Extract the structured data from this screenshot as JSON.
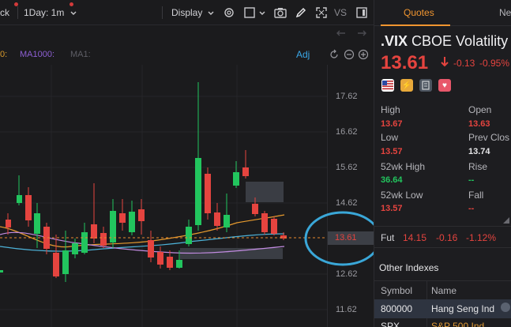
{
  "toolbar": {
    "left_cut": "ck",
    "interval": "1Day: 1m",
    "display": "Display",
    "vs": "VS"
  },
  "indicators": {
    "cut": "0:",
    "ma1000": "MA1000:",
    "ma1": "MA1:",
    "adj": "Adj"
  },
  "price_axis": [
    "17.62",
    "16.62",
    "15.62",
    "14.62",
    "12.62",
    "11.62"
  ],
  "current_price_tag": "13.61",
  "panel": {
    "tabs": [
      "Quotes",
      "Ne"
    ],
    "symbol": ".VIX",
    "name": "CBOE Volatility",
    "price": "13.61",
    "change": "-0.13",
    "change_pct": "-0.95%",
    "stats": {
      "high_label": "High",
      "high": "13.67",
      "open_label": "Open",
      "open": "13.63",
      "low_label": "Low",
      "low": "13.57",
      "prev_close_label": "Prev Clos",
      "prev_close": "13.74",
      "wk52_high_label": "52wk High",
      "wk52_high": "36.64",
      "rise_label": "Rise",
      "rise": "--",
      "wk52_low_label": "52wk Low",
      "wk52_low": "13.57",
      "fall_label": "Fall",
      "fall": "--"
    },
    "fut": {
      "label": "Fut",
      "price": "14.15",
      "change": "-0.16",
      "pct": "-1.12%"
    },
    "other_indexes": {
      "title": "Other Indexes",
      "headers": [
        "Symbol",
        "Name"
      ],
      "rows": [
        {
          "symbol": "800000",
          "name": "Hang Seng Ind"
        },
        {
          "symbol": "SPX",
          "name": "S&P 500 Ind"
        }
      ]
    }
  },
  "colors": {
    "up": "#22c55e",
    "down": "#e5443f",
    "accent": "#f09530",
    "highlight_circle": "#3aa7d8"
  }
}
